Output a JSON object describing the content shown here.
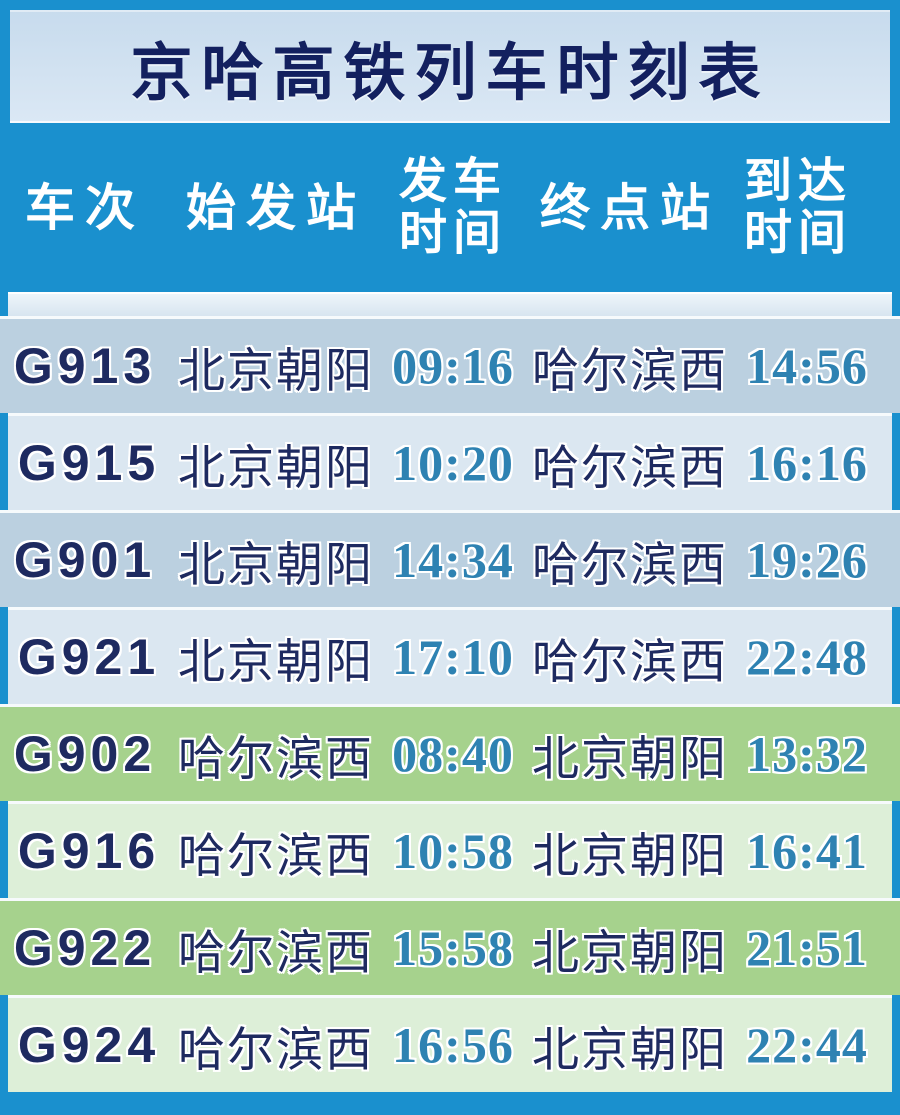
{
  "chart_data": {
    "type": "table",
    "title": "京哈高铁列车时刻表",
    "columns": [
      "车次",
      "始发站",
      "发车时间",
      "终点站",
      "到达时间"
    ],
    "rows": [
      {
        "train": "G913",
        "origin": "北京朝阳",
        "depart": "09:16",
        "dest": "哈尔滨西",
        "arrive": "14:56"
      },
      {
        "train": "G915",
        "origin": "北京朝阳",
        "depart": "10:20",
        "dest": "哈尔滨西",
        "arrive": "16:16"
      },
      {
        "train": "G901",
        "origin": "北京朝阳",
        "depart": "14:34",
        "dest": "哈尔滨西",
        "arrive": "19:26"
      },
      {
        "train": "G921",
        "origin": "北京朝阳",
        "depart": "17:10",
        "dest": "哈尔滨西",
        "arrive": "22:48"
      },
      {
        "train": "G902",
        "origin": "哈尔滨西",
        "depart": "08:40",
        "dest": "北京朝阳",
        "arrive": "13:32"
      },
      {
        "train": "G916",
        "origin": "哈尔滨西",
        "depart": "10:58",
        "dest": "北京朝阳",
        "arrive": "16:41"
      },
      {
        "train": "G922",
        "origin": "哈尔滨西",
        "depart": "15:58",
        "dest": "北京朝阳",
        "arrive": "21:51"
      },
      {
        "train": "G924",
        "origin": "哈尔滨西",
        "depart": "16:56",
        "dest": "北京朝阳",
        "arrive": "22:44"
      }
    ]
  },
  "header": {
    "columns": [
      {
        "lines": [
          "车次"
        ]
      },
      {
        "lines": [
          "始发站"
        ]
      },
      {
        "lines": [
          "发车",
          "时间"
        ]
      },
      {
        "lines": [
          "终点站"
        ]
      },
      {
        "lines": [
          "到达",
          "时间"
        ]
      }
    ]
  },
  "colors": {
    "frame_blue": "#1a90ce",
    "title_panel": "#d2e2f1",
    "title_text": "#13205f",
    "header_text": "#ffffff",
    "row_blue_dark": "#bbd0e0",
    "row_blue_light": "#dbe7f1",
    "row_green_dark": "#a6d28d",
    "row_green_light": "#ddefd8",
    "station_text": "#1e2a60",
    "time_text": "#2e82b2"
  }
}
